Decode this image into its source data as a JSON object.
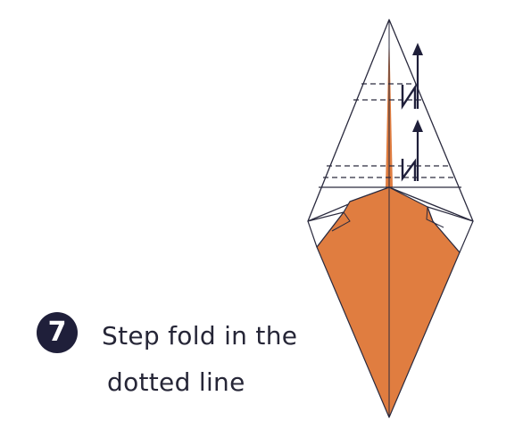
{
  "step": {
    "number": "7",
    "instruction_line1": "Step fold in the",
    "instruction_line2": "dotted line"
  },
  "colors": {
    "paper_orange": "#E07D40",
    "outline": "#2a2a3e",
    "badge": "#1f1f3a",
    "text": "#262637",
    "arrow": "#1f1f3a"
  },
  "icons": {
    "step_fold_symbol": "step-fold-zigzag",
    "fold_direction": "arrow-up"
  }
}
